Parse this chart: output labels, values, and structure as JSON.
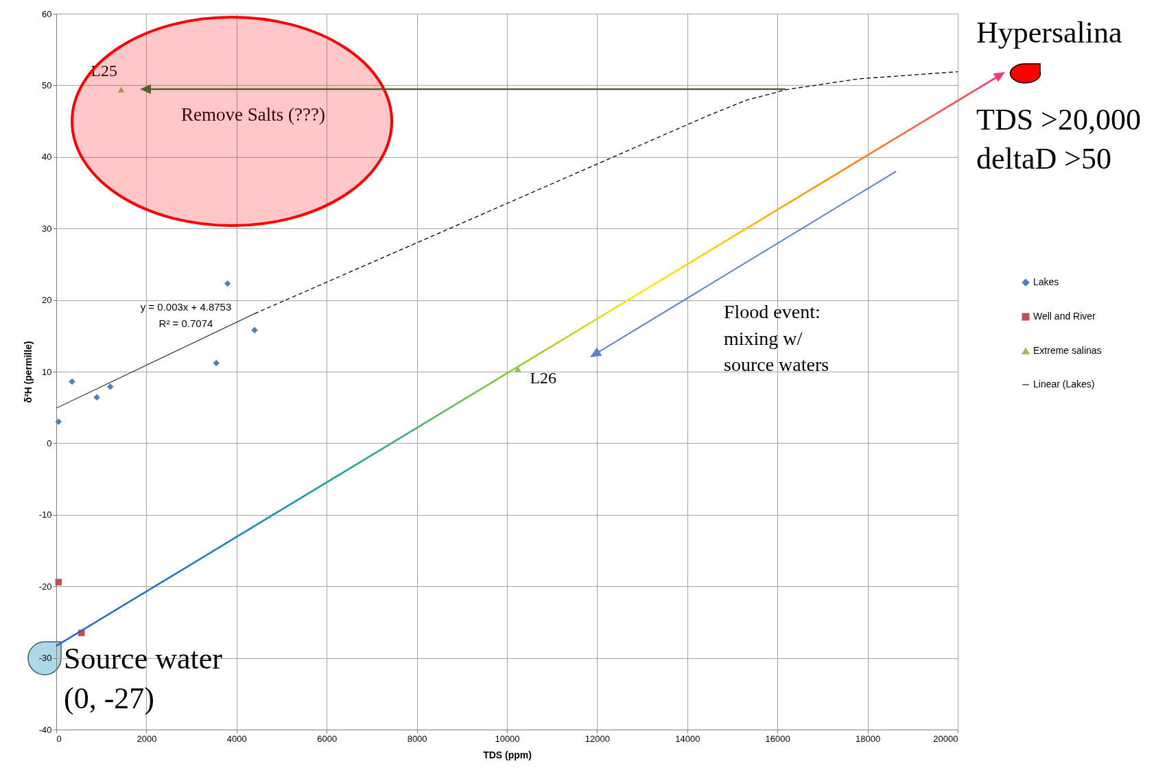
{
  "chart_data": {
    "type": "scatter",
    "xlabel": "TDS (ppm)",
    "ylabel": "δ²H (permille)",
    "xlim": [
      0,
      20000
    ],
    "xticks": [
      0,
      2000,
      4000,
      6000,
      8000,
      10000,
      12000,
      14000,
      16000,
      18000,
      20000
    ],
    "ylim": [
      -40,
      60
    ],
    "yticks": [
      -40,
      -30,
      -20,
      -10,
      0,
      10,
      20,
      30,
      40,
      50,
      60
    ],
    "grid": true,
    "legend": "right",
    "series": [
      {
        "name": "Lakes",
        "marker": "diamond",
        "color": "#4f81bd",
        "x": [
          50,
          350,
          900,
          1200,
          3550,
          3800,
          4400
        ],
        "values": [
          3.0,
          8.6,
          6.4,
          7.9,
          11.2,
          22.3,
          15.8
        ]
      },
      {
        "name": "Well and River",
        "marker": "square",
        "color": "#c0504d",
        "x": [
          50,
          560
        ],
        "values": [
          -19.4,
          -26.5
        ]
      },
      {
        "name": "Extreme salinas",
        "marker": "triangle",
        "color": "#9bbb59",
        "x": [
          1440,
          10240
        ],
        "values": [
          49.4,
          10.4
        ]
      },
      {
        "name": "Linear (Lakes)",
        "type": "line",
        "line_style": "solid",
        "color": "#404040",
        "x": [
          0,
          4400
        ],
        "values": [
          4.9,
          18.1
        ]
      },
      {
        "type": "line",
        "line_style": "dashed",
        "color": "#000000",
        "x": [
          4400,
          14400,
          15300,
          16200,
          17800,
          20000
        ],
        "values": [
          18.1,
          45.6,
          47.9,
          49.4,
          50.9,
          51.9
        ]
      }
    ],
    "annotations": [
      {
        "text": "L25",
        "x": 1440,
        "y": 49.4
      },
      {
        "text": "L26",
        "x": 10240,
        "y": 10.4
      },
      "Remove Salts (???)",
      "Hypersalina",
      "TDS >20,000",
      "deltaD >50",
      "Source water",
      "(0, -27)",
      "Flood event:",
      "mixing w/",
      "source waters",
      "y = 0.003x + 4.8753",
      "R² = 0.7074"
    ]
  }
}
